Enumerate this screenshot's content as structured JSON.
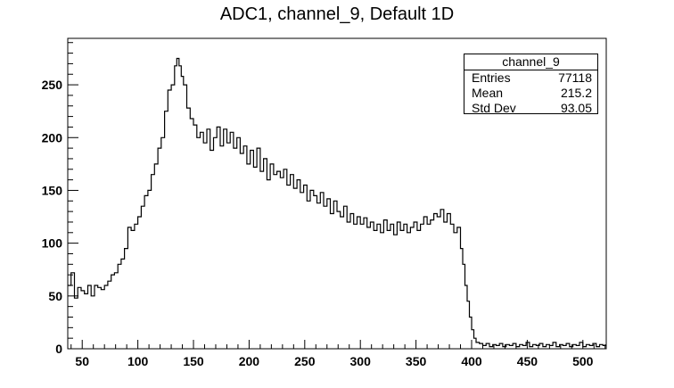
{
  "chart_data": {
    "type": "histogram",
    "title": "ADC1, channel_9, Default 1D",
    "xlabel": "",
    "ylabel": "",
    "xlim": [
      37,
      521
    ],
    "ylim": [
      0,
      294
    ],
    "x_ticks": [
      50,
      100,
      150,
      200,
      250,
      300,
      350,
      400,
      450,
      500
    ],
    "y_ticks": [
      0,
      50,
      100,
      150,
      200,
      250
    ],
    "series": [
      {
        "points": [
          [
            37,
            60
          ],
          [
            40,
            72
          ],
          [
            43,
            48
          ],
          [
            46,
            58
          ],
          [
            49,
            55
          ],
          [
            52,
            52
          ],
          [
            55,
            60
          ],
          [
            58,
            50
          ],
          [
            61,
            60
          ],
          [
            64,
            58
          ],
          [
            67,
            56
          ],
          [
            70,
            60
          ],
          [
            73,
            64
          ],
          [
            76,
            70
          ],
          [
            79,
            72
          ],
          [
            82,
            80
          ],
          [
            85,
            85
          ],
          [
            88,
            95
          ],
          [
            91,
            115
          ],
          [
            94,
            112
          ],
          [
            97,
            118
          ],
          [
            100,
            125
          ],
          [
            103,
            135
          ],
          [
            106,
            145
          ],
          [
            109,
            150
          ],
          [
            112,
            165
          ],
          [
            115,
            175
          ],
          [
            118,
            190
          ],
          [
            121,
            200
          ],
          [
            124,
            225
          ],
          [
            127,
            245
          ],
          [
            130,
            250
          ],
          [
            133,
            268
          ],
          [
            135,
            275
          ],
          [
            137,
            268
          ],
          [
            139,
            258
          ],
          [
            141,
            250
          ],
          [
            144,
            228
          ],
          [
            147,
            218
          ],
          [
            150,
            212
          ],
          [
            153,
            200
          ],
          [
            156,
            205
          ],
          [
            159,
            195
          ],
          [
            162,
            208
          ],
          [
            165,
            188
          ],
          [
            168,
            200
          ],
          [
            171,
            210
          ],
          [
            174,
            192
          ],
          [
            177,
            208
          ],
          [
            180,
            195
          ],
          [
            183,
            205
          ],
          [
            186,
            190
          ],
          [
            189,
            200
          ],
          [
            192,
            185
          ],
          [
            195,
            192
          ],
          [
            198,
            175
          ],
          [
            201,
            188
          ],
          [
            204,
            172
          ],
          [
            207,
            190
          ],
          [
            210,
            168
          ],
          [
            213,
            180
          ],
          [
            216,
            160
          ],
          [
            219,
            175
          ],
          [
            222,
            165
          ],
          [
            225,
            168
          ],
          [
            228,
            162
          ],
          [
            231,
            170
          ],
          [
            234,
            155
          ],
          [
            237,
            165
          ],
          [
            240,
            152
          ],
          [
            243,
            160
          ],
          [
            246,
            148
          ],
          [
            249,
            155
          ],
          [
            252,
            140
          ],
          [
            255,
            150
          ],
          [
            258,
            145
          ],
          [
            261,
            138
          ],
          [
            264,
            148
          ],
          [
            267,
            135
          ],
          [
            270,
            142
          ],
          [
            273,
            128
          ],
          [
            276,
            140
          ],
          [
            279,
            130
          ],
          [
            282,
            125
          ],
          [
            285,
            135
          ],
          [
            288,
            120
          ],
          [
            291,
            128
          ],
          [
            294,
            118
          ],
          [
            297,
            125
          ],
          [
            300,
            118
          ],
          [
            303,
            124
          ],
          [
            306,
            115
          ],
          [
            309,
            120
          ],
          [
            312,
            112
          ],
          [
            315,
            118
          ],
          [
            318,
            110
          ],
          [
            321,
            122
          ],
          [
            324,
            112
          ],
          [
            327,
            118
          ],
          [
            330,
            108
          ],
          [
            333,
            120
          ],
          [
            336,
            112
          ],
          [
            339,
            118
          ],
          [
            342,
            110
          ],
          [
            345,
            115
          ],
          [
            348,
            120
          ],
          [
            351,
            112
          ],
          [
            354,
            118
          ],
          [
            357,
            125
          ],
          [
            360,
            118
          ],
          [
            363,
            122
          ],
          [
            366,
            128
          ],
          [
            369,
            125
          ],
          [
            372,
            132
          ],
          [
            375,
            120
          ],
          [
            378,
            128
          ],
          [
            381,
            118
          ],
          [
            384,
            110
          ],
          [
            387,
            115
          ],
          [
            390,
            95
          ],
          [
            392,
            80
          ],
          [
            394,
            60
          ],
          [
            396,
            45
          ],
          [
            398,
            30
          ],
          [
            400,
            18
          ],
          [
            402,
            10
          ],
          [
            404,
            6
          ],
          [
            407,
            5
          ],
          [
            410,
            3
          ],
          [
            413,
            5
          ],
          [
            416,
            2
          ],
          [
            419,
            4
          ],
          [
            422,
            3
          ],
          [
            425,
            5
          ],
          [
            428,
            2
          ],
          [
            431,
            4
          ],
          [
            434,
            3
          ],
          [
            437,
            5
          ],
          [
            440,
            2
          ],
          [
            443,
            4
          ],
          [
            446,
            3
          ],
          [
            449,
            6
          ],
          [
            452,
            2
          ],
          [
            455,
            4
          ],
          [
            458,
            3
          ],
          [
            461,
            5
          ],
          [
            464,
            2
          ],
          [
            467,
            4
          ],
          [
            470,
            3
          ],
          [
            473,
            6
          ],
          [
            476,
            2
          ],
          [
            479,
            4
          ],
          [
            482,
            3
          ],
          [
            485,
            5
          ],
          [
            488,
            2
          ],
          [
            491,
            4
          ],
          [
            494,
            3
          ],
          [
            497,
            6
          ],
          [
            500,
            2
          ],
          [
            503,
            4
          ],
          [
            506,
            3
          ],
          [
            509,
            5
          ],
          [
            512,
            2
          ],
          [
            515,
            4
          ],
          [
            518,
            3
          ]
        ]
      }
    ],
    "legend": {
      "title": "channel_9",
      "rows": [
        {
          "label": "Entries",
          "value": "77118"
        },
        {
          "label": "Mean",
          "value": "215.2"
        },
        {
          "label": "Std Dev",
          "value": "93.05"
        }
      ],
      "placement": "top-right"
    }
  }
}
